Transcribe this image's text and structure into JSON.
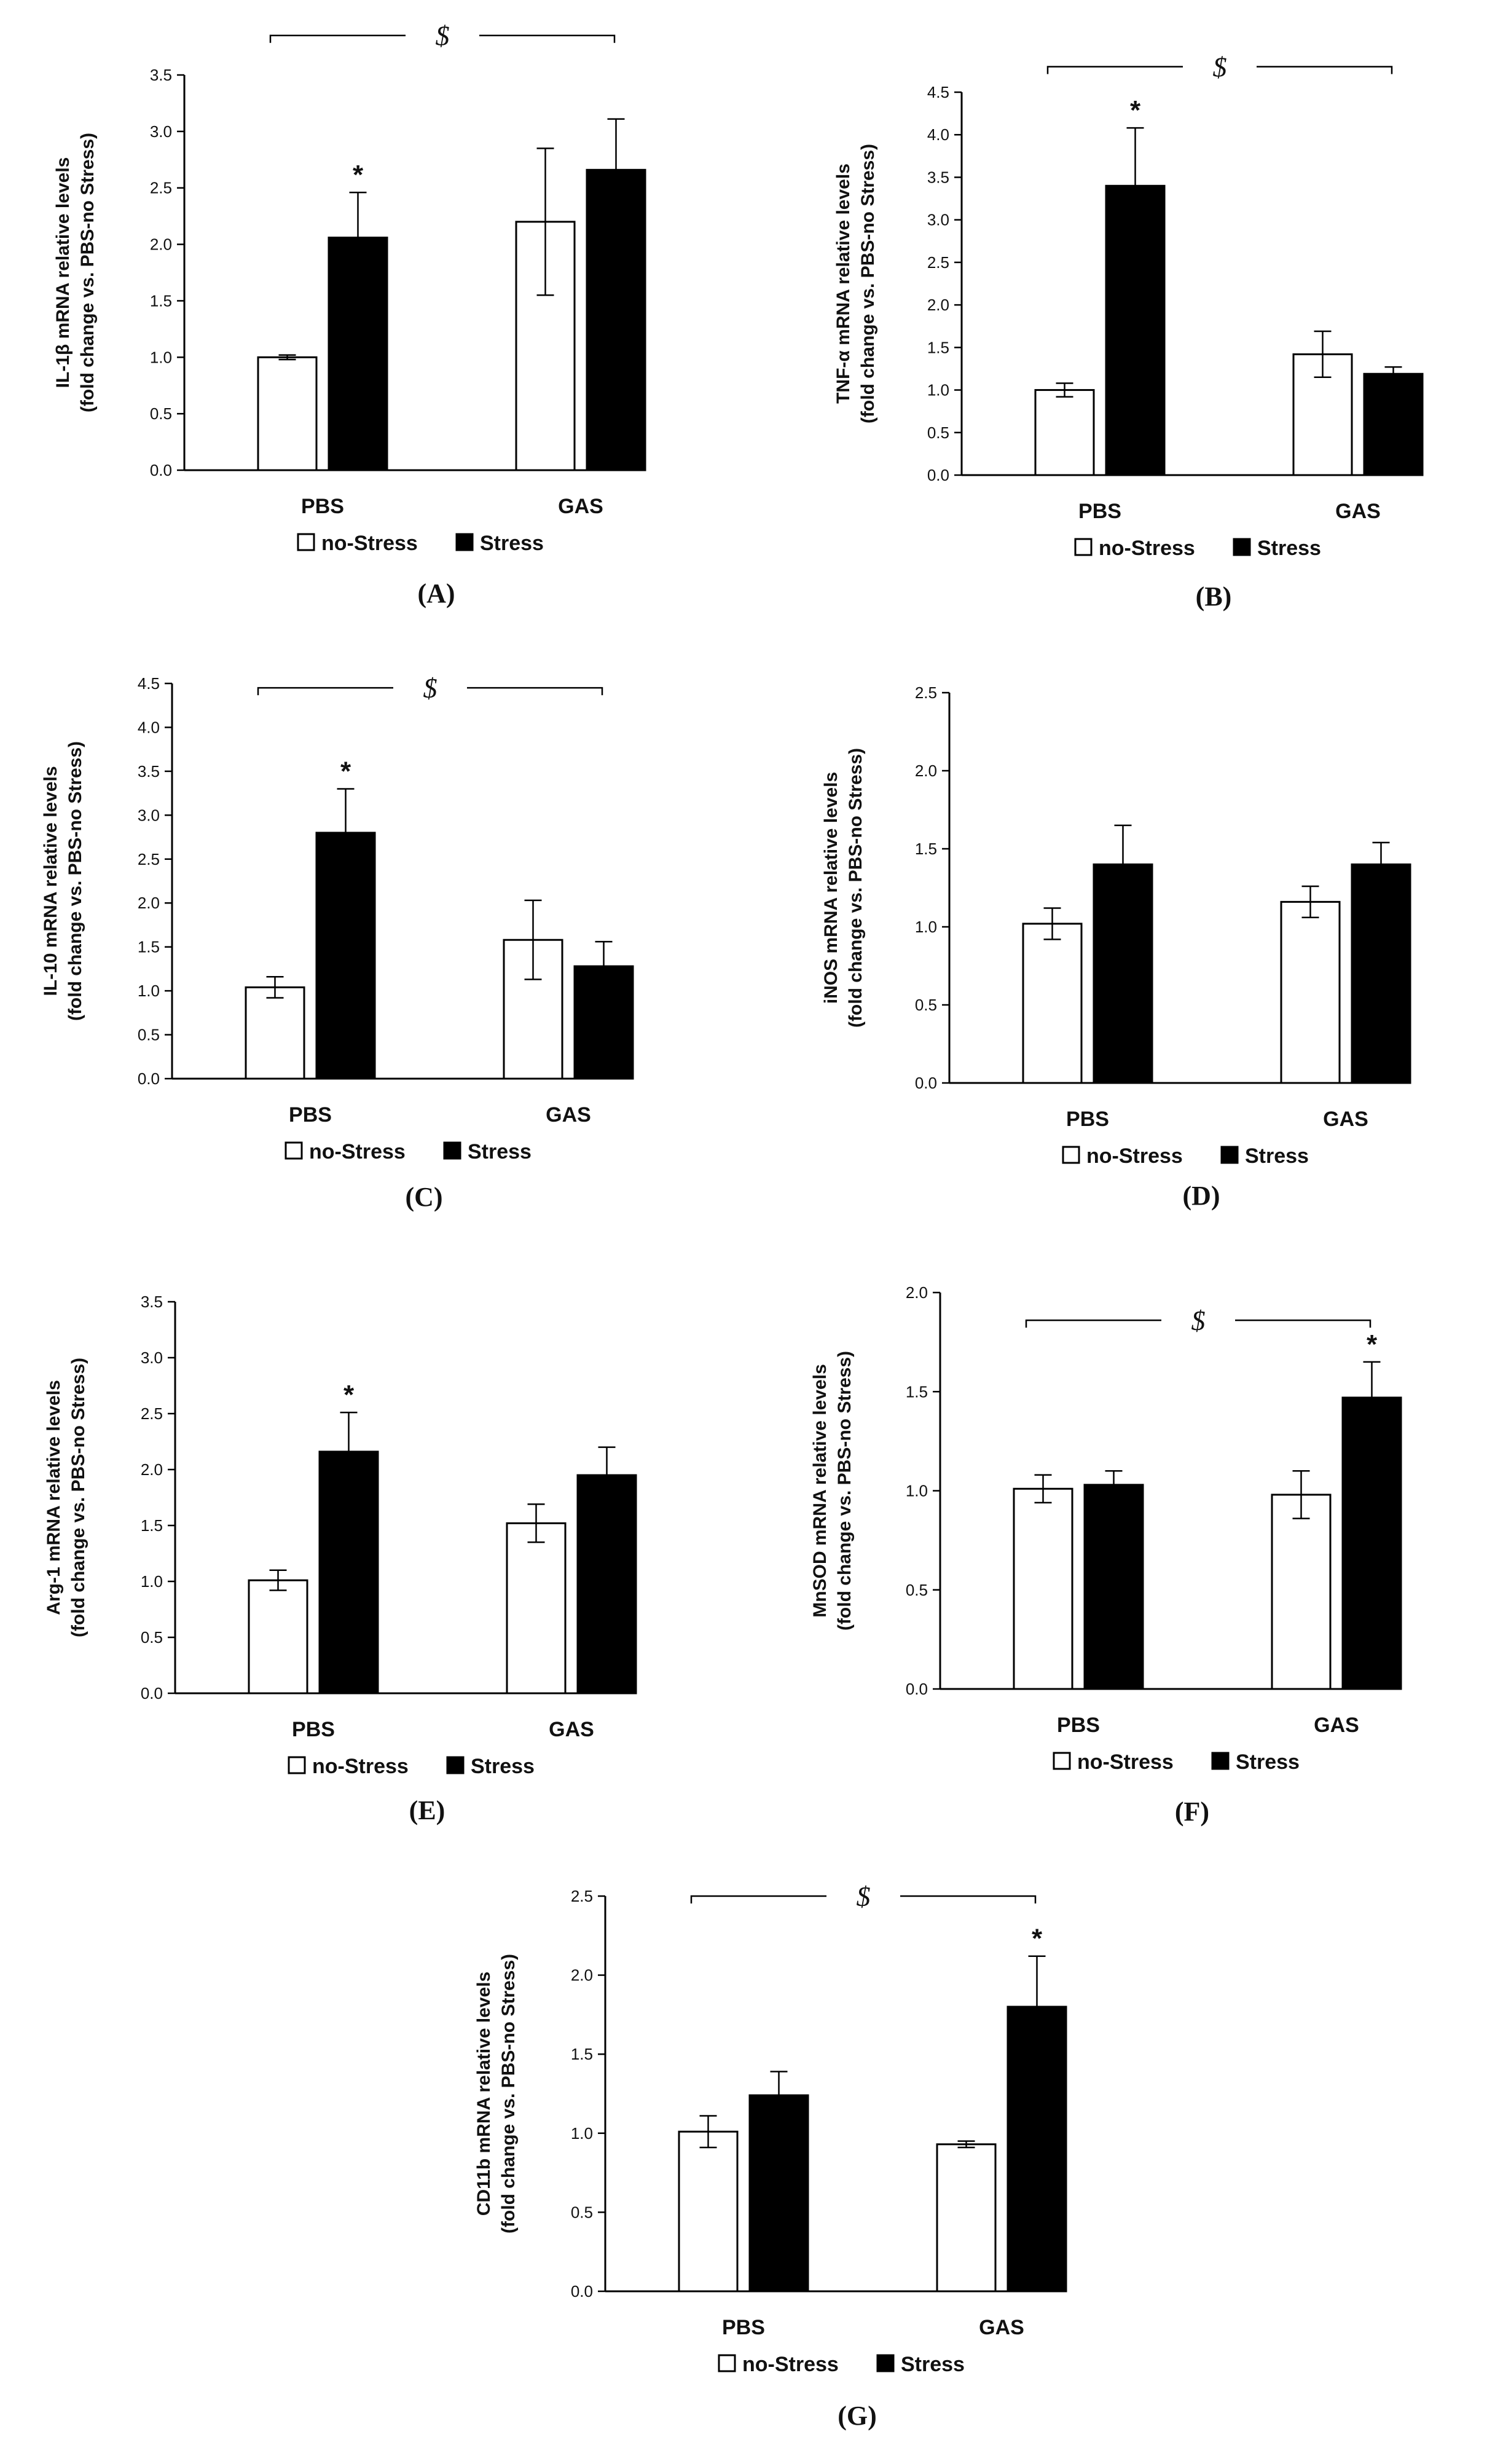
{
  "legend": {
    "no_stress": "no-Stress",
    "stress": "Stress"
  },
  "colors": {
    "no_stress": "#ffffff",
    "stress": "#000000",
    "stroke": "#000000"
  },
  "chart_data": [
    {
      "type": "bar",
      "panel": "(A)",
      "ylabel": [
        "IL-1β mRNA relative levels",
        "(fold change vs. PBS-no Stress)"
      ],
      "categories": [
        "PBS",
        "GAS"
      ],
      "ylim": [
        0,
        3.5
      ],
      "yticks": [
        "0.0",
        "0.5",
        "1.0",
        "1.5",
        "2.0",
        "2.5",
        "3.0",
        "3.5"
      ],
      "series": [
        {
          "name": "no-Stress",
          "values": [
            1.0,
            2.2
          ],
          "errors": [
            0.02,
            0.65
          ]
        },
        {
          "name": "Stress",
          "values": [
            2.06,
            2.66
          ],
          "errors": [
            0.4,
            0.45
          ]
        }
      ],
      "significance": {
        "stars": [
          {
            "series": "Stress",
            "category": "PBS",
            "label": "*"
          }
        ],
        "bracket": {
          "label": "$",
          "from": "PBS",
          "to": "GAS",
          "value": 3.85
        }
      }
    },
    {
      "type": "bar",
      "panel": "(B)",
      "ylabel": [
        "TNF-α mRNA relative levels",
        "(fold change vs. PBS-no Stress)"
      ],
      "categories": [
        "PBS",
        "GAS"
      ],
      "ylim": [
        0,
        4.5
      ],
      "yticks": [
        "0.0",
        "0.5",
        "1.0",
        "1.5",
        "2.0",
        "2.5",
        "3.0",
        "3.5",
        "4.0",
        "4.5"
      ],
      "series": [
        {
          "name": "no-Stress",
          "values": [
            1.0,
            1.42
          ],
          "errors": [
            0.08,
            0.27
          ]
        },
        {
          "name": "Stress",
          "values": [
            3.4,
            1.19
          ],
          "errors": [
            0.68,
            0.08
          ]
        }
      ],
      "significance": {
        "stars": [
          {
            "series": "Stress",
            "category": "PBS",
            "label": "*"
          }
        ],
        "bracket": {
          "label": "$",
          "from": "PBS",
          "to": "GAS",
          "value": 4.8
        }
      }
    },
    {
      "type": "bar",
      "panel": "(C)",
      "ylabel": [
        "IL-10 mRNA relative levels",
        "(fold change vs. PBS-no Stress)"
      ],
      "categories": [
        "PBS",
        "GAS"
      ],
      "ylim": [
        0,
        4.5
      ],
      "yticks": [
        "0.0",
        "0.5",
        "1.0",
        "1.5",
        "2.0",
        "2.5",
        "3.0",
        "3.5",
        "4.0",
        "4.5"
      ],
      "series": [
        {
          "name": "no-Stress",
          "values": [
            1.04,
            1.58
          ],
          "errors": [
            0.12,
            0.45
          ]
        },
        {
          "name": "Stress",
          "values": [
            2.8,
            1.28
          ],
          "errors": [
            0.5,
            0.28
          ]
        }
      ],
      "significance": {
        "stars": [
          {
            "series": "Stress",
            "category": "PBS",
            "label": "*"
          }
        ],
        "bracket": {
          "label": "$",
          "from": "PBS",
          "to": "GAS",
          "value": 4.45
        }
      }
    },
    {
      "type": "bar",
      "panel": "(D)",
      "ylabel": [
        "iNOS mRNA relative levels",
        "(fold change vs. PBS-no Stress)"
      ],
      "categories": [
        "PBS",
        "GAS"
      ],
      "ylim": [
        0,
        2.5
      ],
      "yticks": [
        "0.0",
        "0.5",
        "1.0",
        "1.5",
        "2.0",
        "2.5"
      ],
      "series": [
        {
          "name": "no-Stress",
          "values": [
            1.02,
            1.16
          ],
          "errors": [
            0.1,
            0.1
          ]
        },
        {
          "name": "Stress",
          "values": [
            1.4,
            1.4
          ],
          "errors": [
            0.25,
            0.14
          ]
        }
      ],
      "significance": {
        "stars": [],
        "bracket": null
      }
    },
    {
      "type": "bar",
      "panel": "(E)",
      "ylabel": [
        "Arg-1 mRNA relative levels",
        "(fold change vs. PBS-no Stress)"
      ],
      "categories": [
        "PBS",
        "GAS"
      ],
      "ylim": [
        0,
        3.5
      ],
      "yticks": [
        "0.0",
        "0.5",
        "1.0",
        "1.5",
        "2.0",
        "2.5",
        "3.0",
        "3.5"
      ],
      "series": [
        {
          "name": "no-Stress",
          "values": [
            1.01,
            1.52
          ],
          "errors": [
            0.09,
            0.17
          ]
        },
        {
          "name": "Stress",
          "values": [
            2.16,
            1.95
          ],
          "errors": [
            0.35,
            0.25
          ]
        }
      ],
      "significance": {
        "stars": [
          {
            "series": "Stress",
            "category": "PBS",
            "label": "*"
          }
        ],
        "bracket": null
      }
    },
    {
      "type": "bar",
      "panel": "(F)",
      "ylabel": [
        "MnSOD mRNA relative levels",
        "(fold change vs. PBS-no Stress)"
      ],
      "categories": [
        "PBS",
        "GAS"
      ],
      "ylim": [
        0,
        2.0
      ],
      "yticks": [
        "0.0",
        "0.5",
        "1.0",
        "1.5",
        "2.0"
      ],
      "series": [
        {
          "name": "no-Stress",
          "values": [
            1.01,
            0.98
          ],
          "errors": [
            0.07,
            0.12
          ]
        },
        {
          "name": "Stress",
          "values": [
            1.03,
            1.47
          ],
          "errors": [
            0.07,
            0.18
          ]
        }
      ],
      "significance": {
        "stars": [
          {
            "series": "Stress",
            "category": "GAS",
            "label": "*"
          }
        ],
        "bracket": {
          "label": "$",
          "from": "PBS",
          "to": "GAS",
          "value": 1.86
        }
      }
    },
    {
      "type": "bar",
      "panel": "(G)",
      "ylabel": [
        "CD11b mRNA relative levels",
        "(fold change vs. PBS-no Stress)"
      ],
      "categories": [
        "PBS",
        "GAS"
      ],
      "ylim": [
        0,
        2.5
      ],
      "yticks": [
        "0.0",
        "0.5",
        "1.0",
        "1.5",
        "2.0",
        "2.5"
      ],
      "series": [
        {
          "name": "no-Stress",
          "values": [
            1.01,
            0.93
          ],
          "errors": [
            0.1,
            0.02
          ]
        },
        {
          "name": "Stress",
          "values": [
            1.24,
            1.8
          ],
          "errors": [
            0.15,
            0.32
          ]
        }
      ],
      "significance": {
        "stars": [
          {
            "series": "Stress",
            "category": "GAS",
            "label": "*"
          }
        ],
        "bracket": {
          "label": "$",
          "from": "PBS",
          "to": "GAS",
          "value": 2.5
        }
      }
    }
  ]
}
